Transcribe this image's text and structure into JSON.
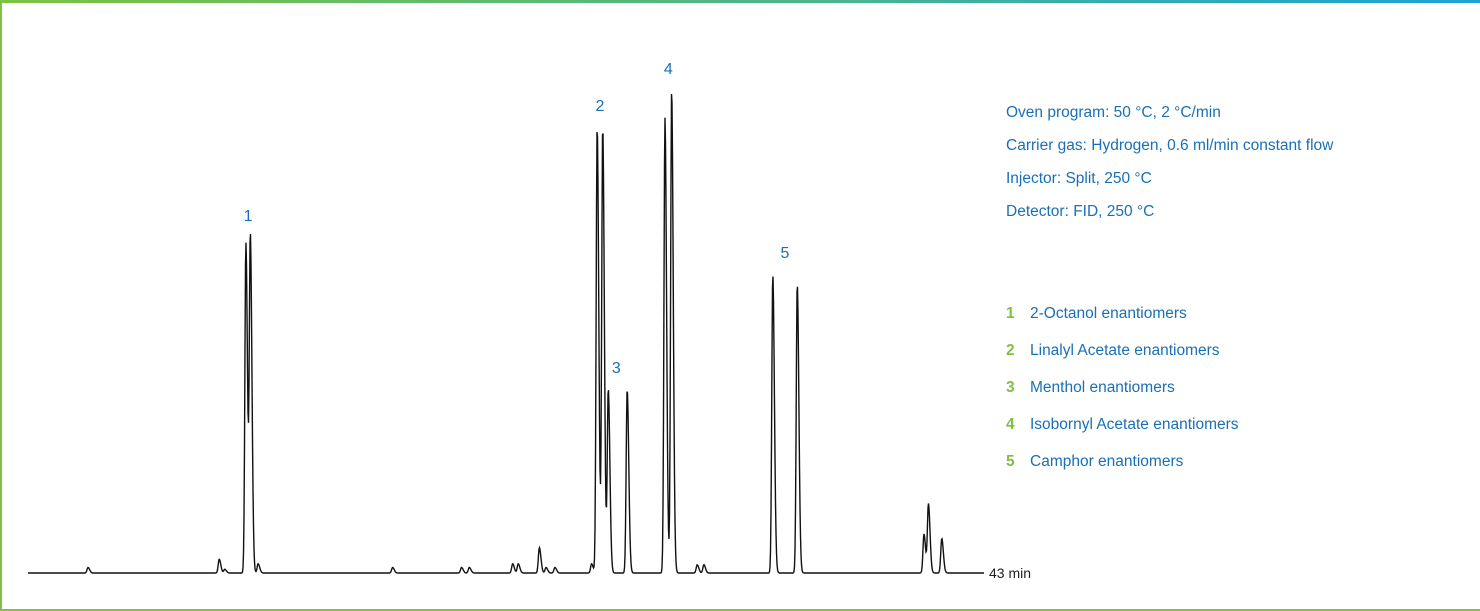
{
  "chart_data": {
    "type": "line",
    "title": "",
    "xlabel": "",
    "ylabel": "",
    "x_end_label": "43 min",
    "x_range_min": [
      0,
      43
    ],
    "line_color": "#111111",
    "peaks": [
      {
        "label": "1",
        "t": 9.8,
        "h": 0.72
      },
      {
        "label": "1",
        "t": 10.0,
        "h": 0.73
      },
      {
        "label": "2",
        "t": 25.6,
        "h": 0.97
      },
      {
        "label": "2",
        "t": 25.85,
        "h": 0.97
      },
      {
        "label": "3",
        "t": 26.1,
        "h": 0.4
      },
      {
        "label": "3",
        "t": 26.95,
        "h": 0.4
      },
      {
        "label": "4",
        "t": 28.65,
        "h": 0.99
      },
      {
        "label": "4",
        "t": 28.95,
        "h": 1.05
      },
      {
        "label": "5",
        "t": 33.5,
        "h": 0.65
      },
      {
        "label": "5",
        "t": 34.6,
        "h": 0.63
      }
    ],
    "minor_peaks": [
      {
        "t": 2.7,
        "h": 0.012
      },
      {
        "t": 8.6,
        "h": 0.03
      },
      {
        "t": 8.85,
        "h": 0.008
      },
      {
        "t": 10.35,
        "h": 0.02
      },
      {
        "t": 16.4,
        "h": 0.012
      },
      {
        "t": 19.5,
        "h": 0.012
      },
      {
        "t": 19.85,
        "h": 0.012
      },
      {
        "t": 21.8,
        "h": 0.02
      },
      {
        "t": 22.05,
        "h": 0.02
      },
      {
        "t": 23.0,
        "h": 0.055
      },
      {
        "t": 23.3,
        "h": 0.012
      },
      {
        "t": 23.7,
        "h": 0.012
      },
      {
        "t": 25.35,
        "h": 0.02
      },
      {
        "t": 30.1,
        "h": 0.018
      },
      {
        "t": 30.4,
        "h": 0.018
      },
      {
        "t": 40.3,
        "h": 0.085
      },
      {
        "t": 40.5,
        "h": 0.15
      },
      {
        "t": 41.1,
        "h": 0.075
      }
    ],
    "peak_labels": [
      "1",
      "2",
      "3",
      "4",
      "5"
    ]
  },
  "conditions": [
    "Oven program: 50 °C, 2 °C/min",
    "Carrier gas: Hydrogen, 0.6 ml/min constant flow",
    "Injector: Split, 250 °C",
    "Detector: FID, 250 °C"
  ],
  "legend": [
    {
      "num": "1",
      "text": "2-Octanol enantiomers"
    },
    {
      "num": "2",
      "text": "Linalyl Acetate enantiomers"
    },
    {
      "num": "3",
      "text": "Menthol enantiomers"
    },
    {
      "num": "4",
      "text": "Isobornyl Acetate enantiomers"
    },
    {
      "num": "5",
      "text": "Camphor enantiomers"
    }
  ],
  "colors": {
    "accent_green": "#7dc242",
    "text_blue": "#1a6fb5"
  }
}
